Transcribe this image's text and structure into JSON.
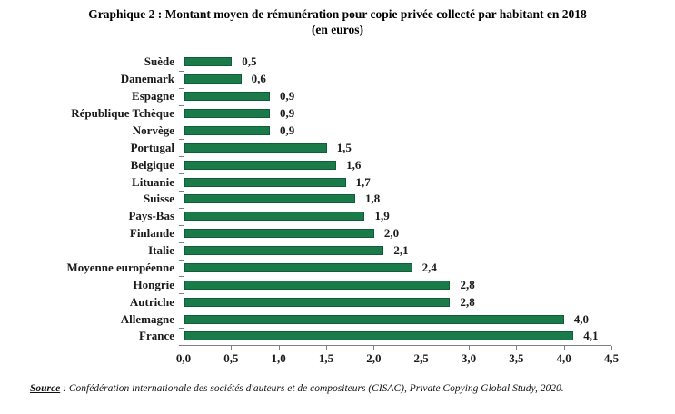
{
  "title": {
    "line1": "Graphique 2 : Montant moyen de rémunération pour copie privée collecté par habitant en 2018",
    "line2": "(en euros)"
  },
  "chart_data": {
    "type": "bar",
    "orientation": "horizontal",
    "title": "Graphique 2 : Montant moyen de rémunération pour copie privée collecté par habitant en 2018 (en euros)",
    "categories": [
      "Suède",
      "Danemark",
      "Espagne",
      "République Tchèque",
      "Norvège",
      "Portugal",
      "Belgique",
      "Lituanie",
      "Suisse",
      "Pays-Bas",
      "Finlande",
      "Italie",
      "Moyenne européenne",
      "Hongrie",
      "Autriche",
      "Allemagne",
      "France"
    ],
    "values": [
      0.5,
      0.6,
      0.9,
      0.9,
      0.9,
      1.5,
      1.6,
      1.7,
      1.8,
      1.9,
      2.0,
      2.1,
      2.4,
      2.8,
      2.8,
      4.0,
      4.1
    ],
    "value_labels": [
      "0,5",
      "0,6",
      "0,9",
      "0,9",
      "0,9",
      "1,5",
      "1,6",
      "1,7",
      "1,8",
      "1,9",
      "2,0",
      "2,1",
      "2,4",
      "2,8",
      "2,8",
      "4,0",
      "4,1"
    ],
    "xlim": [
      0,
      4.5
    ],
    "x_ticks": [
      "0,0",
      "0,5",
      "1,0",
      "1,5",
      "2,0",
      "2,5",
      "3,0",
      "3,5",
      "4,0",
      "4,5"
    ],
    "xlabel": "",
    "ylabel": "",
    "grid": false,
    "legend": "none",
    "bar_color": "#1a7a4a",
    "bar_border_color": "#0f5e38",
    "axis_color": "#7f7f7f"
  },
  "source": {
    "label": "Source",
    "separator": " : ",
    "text": "Confédération internationale des sociétés d'auteurs et de compositeurs (CISAC), Private Copying Global Study, 2020."
  }
}
